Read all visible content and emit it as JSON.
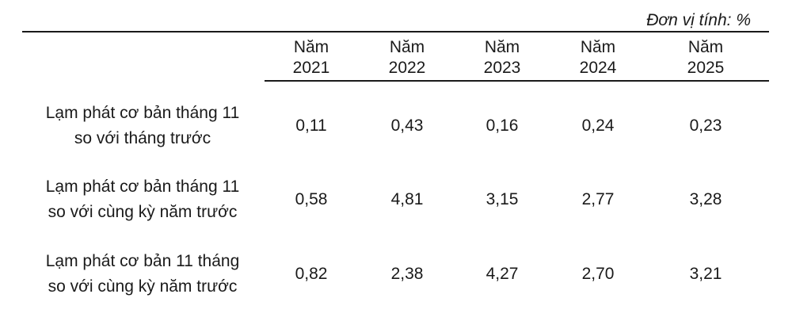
{
  "unit_label": "Đơn vị tính: %",
  "columns": [
    {
      "line1": "Năm",
      "line2": "2021"
    },
    {
      "line1": "Năm",
      "line2": "2022"
    },
    {
      "line1": "Năm",
      "line2": "2023"
    },
    {
      "line1": "Năm",
      "line2": "2024"
    },
    {
      "line1": "Năm",
      "line2": "2025"
    }
  ],
  "rows": [
    {
      "label1": "Lạm phát cơ bản tháng 11",
      "label2": "so với tháng trước",
      "values": [
        "0,11",
        "0,43",
        "0,16",
        "0,24",
        "0,23"
      ]
    },
    {
      "label1": "Lạm phát cơ bản tháng 11",
      "label2": "so với cùng kỳ năm trước",
      "values": [
        "0,58",
        "4,81",
        "3,15",
        "2,77",
        "3,28"
      ]
    },
    {
      "label1": "Lạm phát cơ bản 11 tháng",
      "label2": "so với cùng kỳ năm trước",
      "values": [
        "0,82",
        "2,38",
        "4,27",
        "2,70",
        "3,21"
      ]
    }
  ]
}
